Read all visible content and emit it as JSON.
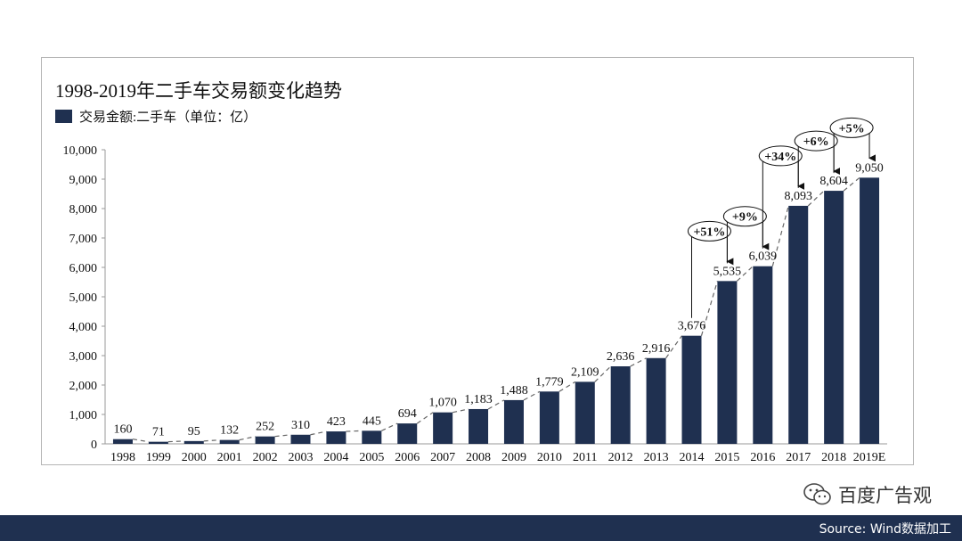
{
  "chart_data": {
    "type": "bar",
    "title": "1998-2019年二手车交易额变化趋势",
    "legend": "交易金额:二手车（单位：亿）",
    "categories": [
      "1998",
      "1999",
      "2000",
      "2001",
      "2002",
      "2003",
      "2004",
      "2005",
      "2006",
      "2007",
      "2008",
      "2009",
      "2010",
      "2011",
      "2012",
      "2013",
      "2014",
      "2015",
      "2016",
      "2017",
      "2018",
      "2019E"
    ],
    "values": [
      160,
      71,
      95,
      132,
      252,
      310,
      423,
      445,
      694,
      1070,
      1183,
      1488,
      1779,
      2109,
      2636,
      2916,
      3676,
      5535,
      6039,
      8093,
      8604,
      9050
    ],
    "value_labels": [
      "160",
      "71",
      "95",
      "132",
      "252",
      "310",
      "423",
      "445",
      "694",
      "1,070",
      "1,183",
      "1,488",
      "1,779",
      "2,109",
      "2,636",
      "2,916",
      "3,676",
      "5,535",
      "6,039",
      "8,093",
      "8,604",
      "9,050"
    ],
    "ylim": [
      0,
      10000
    ],
    "yticks": [
      0,
      1000,
      2000,
      3000,
      4000,
      5000,
      6000,
      7000,
      8000,
      9000,
      10000
    ],
    "ytick_labels": [
      "0",
      "1,000",
      "2,000",
      "3,000",
      "4,000",
      "5,000",
      "6,000",
      "7,000",
      "8,000",
      "9,000",
      "10,000"
    ],
    "growth_annotations": [
      {
        "from": "2014",
        "to": "2015",
        "label": "+51%"
      },
      {
        "from": "2015",
        "to": "2016",
        "label": "+9%"
      },
      {
        "from": "2016",
        "to": "2017",
        "label": "+34%"
      },
      {
        "from": "2017",
        "to": "2018",
        "label": "+6%"
      },
      {
        "from": "2018",
        "to": "2019E",
        "label": "+5%"
      }
    ],
    "trend_line": "dashed",
    "grid": false,
    "legend_position": "top-left"
  },
  "colors": {
    "bar": "#1f3050",
    "footer": "#1f3050"
  },
  "watermark": {
    "icon": "wechat-icon",
    "text": "百度广告观"
  },
  "footer": {
    "source": "Source: Wind数据加工"
  }
}
